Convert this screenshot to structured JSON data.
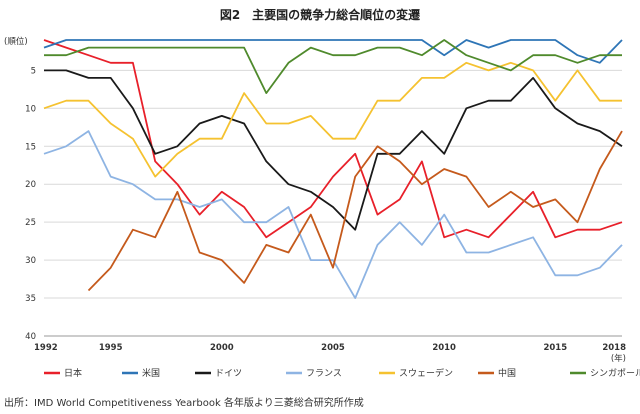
{
  "title": "図2　主要国の競争力総合順位の変遷",
  "source": "出所：IMD World Competitiveness Yearbook 各年版より三菱総合研究所作成",
  "chart_data": {
    "type": "line",
    "ylabel": "(順位)",
    "xlabel": "(年)",
    "ylim": [
      40,
      1
    ],
    "y_reversed": true,
    "yticks": [
      5,
      10,
      15,
      20,
      25,
      30,
      35,
      40
    ],
    "xlim": [
      1992,
      2018
    ],
    "xtick_labels": [
      "1992",
      "1995",
      "2000",
      "2005",
      "2010",
      "2015",
      "2018"
    ],
    "grid": "horizontal",
    "legend_position": "bottom",
    "x": [
      1992,
      1993,
      1994,
      1995,
      1996,
      1997,
      1998,
      1999,
      2000,
      2001,
      2002,
      2003,
      2004,
      2005,
      2006,
      2007,
      2008,
      2009,
      2010,
      2011,
      2012,
      2013,
      2014,
      2015,
      2016,
      2017,
      2018
    ],
    "series": [
      {
        "name": "日本",
        "color": "#e8202a",
        "values": [
          1,
          2,
          3,
          4,
          4,
          17,
          20,
          24,
          21,
          23,
          27,
          25,
          23,
          19,
          16,
          24,
          22,
          17,
          27,
          26,
          27,
          24,
          21,
          27,
          26,
          26,
          25
        ]
      },
      {
        "name": "米国",
        "color": "#2e75b6",
        "values": [
          2,
          1,
          1,
          1,
          1,
          1,
          1,
          1,
          1,
          1,
          1,
          1,
          1,
          1,
          1,
          1,
          1,
          1,
          3,
          1,
          2,
          1,
          1,
          1,
          3,
          4,
          1
        ]
      },
      {
        "name": "ドイツ",
        "color": "#1a1a1a",
        "values": [
          5,
          5,
          6,
          6,
          10,
          16,
          15,
          12,
          11,
          12,
          17,
          20,
          21,
          23,
          26,
          16,
          16,
          13,
          16,
          10,
          9,
          9,
          6,
          10,
          12,
          13,
          15
        ]
      },
      {
        "name": "フランス",
        "color": "#8eb4e3",
        "values": [
          16,
          15,
          13,
          19,
          20,
          22,
          22,
          23,
          22,
          25,
          25,
          23,
          30,
          30,
          35,
          28,
          25,
          28,
          24,
          29,
          29,
          28,
          27,
          32,
          32,
          31,
          28
        ]
      },
      {
        "name": "スウェーデン",
        "color": "#f5c230",
        "values": [
          10,
          9,
          9,
          12,
          14,
          19,
          16,
          14,
          14,
          8,
          12,
          12,
          11,
          14,
          14,
          9,
          9,
          6,
          6,
          4,
          5,
          4,
          5,
          9,
          5,
          9,
          9
        ]
      },
      {
        "name": "中国",
        "color": "#c55a1c",
        "values": [
          null,
          null,
          34,
          31,
          26,
          27,
          21,
          29,
          30,
          33,
          28,
          29,
          24,
          31,
          19,
          15,
          17,
          20,
          18,
          19,
          23,
          21,
          23,
          22,
          25,
          18,
          13
        ]
      },
      {
        "name": "シンガポール",
        "color": "#4f8a2c",
        "values": [
          3,
          3,
          2,
          2,
          2,
          2,
          2,
          2,
          2,
          2,
          8,
          4,
          2,
          3,
          3,
          2,
          2,
          3,
          1,
          3,
          4,
          5,
          3,
          3,
          4,
          3,
          3
        ]
      }
    ]
  }
}
